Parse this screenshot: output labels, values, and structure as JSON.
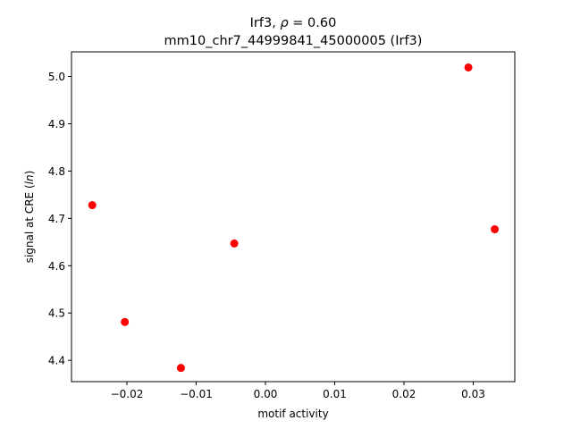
{
  "chart_data": {
    "type": "scatter",
    "title_prefix": "Irf3, ",
    "title_rho": "ρ",
    "title_rho_value": " = 0.60",
    "subtitle": "mm10_chr7_44999841_45000005 (Irf3)",
    "xlabel": "motif activity",
    "ylabel_prefix": "signal at CRE (",
    "ylabel_italic": "ln",
    "ylabel_suffix": ")",
    "xlim": [
      -0.028,
      0.036
    ],
    "ylim": [
      4.355,
      5.052
    ],
    "xticks": [
      {
        "value": -0.02,
        "label": "−0.02"
      },
      {
        "value": -0.01,
        "label": "−0.01"
      },
      {
        "value": 0.0,
        "label": "0.00"
      },
      {
        "value": 0.01,
        "label": "0.01"
      },
      {
        "value": 0.02,
        "label": "0.02"
      },
      {
        "value": 0.03,
        "label": "0.03"
      }
    ],
    "yticks": [
      {
        "value": 4.4,
        "label": "4.4"
      },
      {
        "value": 4.5,
        "label": "4.5"
      },
      {
        "value": 4.6,
        "label": "4.6"
      },
      {
        "value": 4.7,
        "label": "4.7"
      },
      {
        "value": 4.8,
        "label": "4.8"
      },
      {
        "value": 4.9,
        "label": "4.9"
      },
      {
        "value": 5.0,
        "label": "5.0"
      }
    ],
    "points": [
      {
        "x": -0.025,
        "y": 4.728
      },
      {
        "x": -0.0203,
        "y": 4.481
      },
      {
        "x": -0.0122,
        "y": 4.384
      },
      {
        "x": -0.0045,
        "y": 4.647
      },
      {
        "x": 0.0293,
        "y": 5.019
      },
      {
        "x": 0.0331,
        "y": 4.677
      }
    ],
    "marker_color": "#ff0000",
    "grid": false,
    "legend": false
  }
}
